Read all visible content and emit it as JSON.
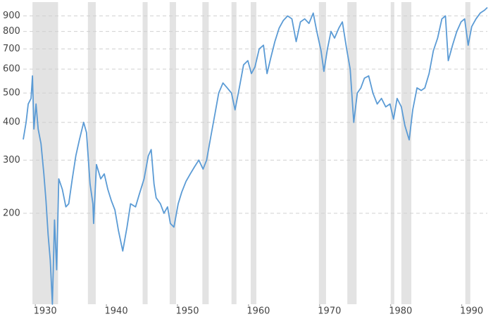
{
  "chart_data": {
    "type": "line",
    "log_scale": true,
    "grid": true,
    "xlim": [
      1928.3,
      1993.6
    ],
    "ylim": [
      100,
      1000
    ],
    "xticks": [
      1930,
      1940,
      1950,
      1960,
      1970,
      1980,
      1990
    ],
    "yticks": [
      200,
      300,
      400,
      500,
      600,
      700,
      800,
      900
    ],
    "recessions": [
      [
        1929.6,
        1933.2
      ],
      [
        1937.4,
        1938.5
      ],
      [
        1945.1,
        1945.8
      ],
      [
        1948.9,
        1949.8
      ],
      [
        1953.5,
        1954.4
      ],
      [
        1957.6,
        1958.3
      ],
      [
        1960.3,
        1961.1
      ],
      [
        1969.9,
        1970.9
      ],
      [
        1973.9,
        1975.2
      ],
      [
        1980.0,
        1980.5
      ],
      [
        1981.5,
        1982.9
      ],
      [
        1990.5,
        1991.2
      ]
    ],
    "recession_color": "#e3e3e3",
    "x": [
      1928.3,
      1928.7,
      1929.0,
      1929.4,
      1929.6,
      1929.8,
      1930.1,
      1930.4,
      1930.8,
      1931.2,
      1931.5,
      1931.8,
      1932.1,
      1932.4,
      1932.7,
      1933.0,
      1933.3,
      1933.8,
      1934.3,
      1934.7,
      1935.2,
      1935.7,
      1936.2,
      1936.8,
      1937.2,
      1937.7,
      1938.1,
      1938.2,
      1938.6,
      1939.2,
      1939.7,
      1940.2,
      1940.7,
      1941.2,
      1941.7,
      1942.3,
      1942.9,
      1943.4,
      1944.1,
      1944.6,
      1945.3,
      1945.9,
      1946.3,
      1946.7,
      1947.0,
      1947.6,
      1948.1,
      1948.6,
      1949.0,
      1949.5,
      1950.1,
      1950.6,
      1951.2,
      1951.8,
      1952.4,
      1953.0,
      1953.6,
      1954.1,
      1954.7,
      1955.3,
      1955.8,
      1956.4,
      1957.0,
      1957.6,
      1958.1,
      1958.7,
      1959.3,
      1959.9,
      1960.4,
      1960.9,
      1961.5,
      1962.1,
      1962.6,
      1963.1,
      1963.7,
      1964.3,
      1964.9,
      1965.5,
      1966.1,
      1966.7,
      1967.3,
      1967.9,
      1968.5,
      1969.1,
      1969.6,
      1970.2,
      1970.6,
      1971.1,
      1971.6,
      1972.1,
      1972.7,
      1973.2,
      1973.8,
      1974.3,
      1974.8,
      1975.3,
      1975.8,
      1976.3,
      1976.9,
      1977.5,
      1978.1,
      1978.7,
      1979.3,
      1979.9,
      1980.4,
      1980.9,
      1981.5,
      1982.0,
      1982.6,
      1983.1,
      1983.7,
      1984.3,
      1984.8,
      1985.4,
      1986.0,
      1986.6,
      1987.2,
      1987.7,
      1988.1,
      1988.7,
      1989.3,
      1989.9,
      1990.4,
      1990.9,
      1991.4,
      1992.0,
      1992.6,
      1993.2,
      1993.6
    ],
    "series": [
      {
        "color": "#5b9bd5",
        "values": [
          351,
          400,
          460,
          480,
          570,
          380,
          460,
          380,
          340,
          270,
          220,
          170,
          140,
          100,
          190,
          130,
          260,
          240,
          210,
          215,
          260,
          310,
          350,
          400,
          370,
          250,
          215,
          185,
          290,
          260,
          270,
          240,
          220,
          205,
          175,
          150,
          180,
          215,
          210,
          230,
          260,
          310,
          325,
          250,
          225,
          215,
          200,
          210,
          185,
          180,
          215,
          235,
          255,
          270,
          285,
          300,
          280,
          300,
          360,
          430,
          500,
          540,
          520,
          500,
          440,
          520,
          620,
          640,
          580,
          610,
          700,
          720,
          580,
          650,
          740,
          820,
          870,
          900,
          880,
          740,
          860,
          880,
          850,
          920,
          800,
          690,
          590,
          700,
          800,
          760,
          820,
          860,
          700,
          600,
          400,
          500,
          520,
          560,
          570,
          500,
          460,
          480,
          450,
          460,
          410,
          480,
          450,
          390,
          350,
          440,
          520,
          510,
          520,
          580,
          690,
          760,
          880,
          900,
          640,
          720,
          800,
          860,
          880,
          720,
          830,
          880,
          920,
          940,
          960
        ]
      }
    ]
  }
}
